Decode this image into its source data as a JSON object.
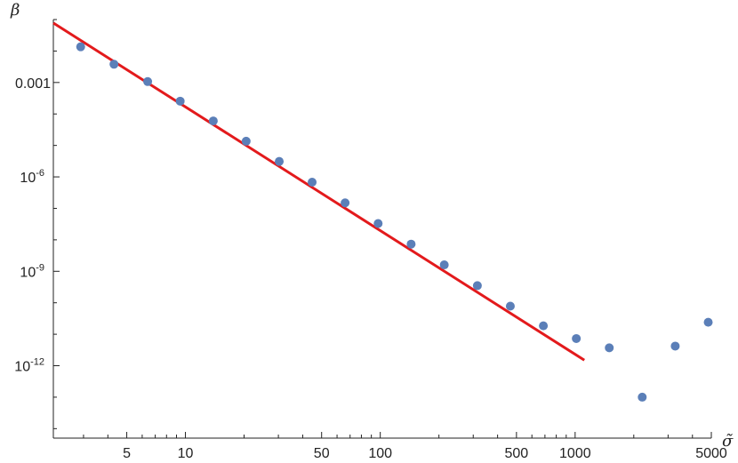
{
  "chart_data": {
    "type": "scatter",
    "xlabel": "σ̃",
    "ylabel": "β",
    "x_scale": "log",
    "y_scale": "log",
    "xlim": [
      2.1,
      5000
    ],
    "ylim": [
      5e-15,
      0.1
    ],
    "x_ticks": [
      {
        "value": 5,
        "label": "5"
      },
      {
        "value": 10,
        "label": "10"
      },
      {
        "value": 50,
        "label": "50"
      },
      {
        "value": 100,
        "label": "100"
      },
      {
        "value": 500,
        "label": "500"
      },
      {
        "value": 1000,
        "label": "1000"
      },
      {
        "value": 5000,
        "label": "5000"
      }
    ],
    "y_ticks": [
      {
        "value": 0.001,
        "label": "0.001",
        "base": "",
        "exp": ""
      },
      {
        "value": 1e-06,
        "label": "10-6",
        "base": "10",
        "exp": "-6"
      },
      {
        "value": 1e-09,
        "label": "10-9",
        "base": "10",
        "exp": "-9"
      },
      {
        "value": 1e-12,
        "label": "10-12",
        "base": "10",
        "exp": "-12"
      }
    ],
    "series": [
      {
        "kind": "points",
        "color": "#5b7fb8",
        "points": [
          [
            2.9,
            0.0136
          ],
          [
            4.3,
            0.0038
          ],
          [
            6.4,
            0.00107
          ],
          [
            9.4,
            0.000255
          ],
          [
            13.9,
            6e-05
          ],
          [
            20.5,
            1.36e-05
          ],
          [
            30.3,
            3.1e-06
          ],
          [
            44.7,
            6.8e-07
          ],
          [
            66,
            1.5e-07
          ],
          [
            97.5,
            3.3e-08
          ],
          [
            144,
            7.3e-09
          ],
          [
            213,
            1.6e-09
          ],
          [
            315,
            3.5e-10
          ],
          [
            465,
            7.8e-11
          ],
          [
            687,
            1.85e-11
          ],
          [
            1014,
            7.3e-12
          ],
          [
            1497,
            3.7e-12
          ],
          [
            2210,
            1e-13
          ],
          [
            3264,
            4.2e-12
          ],
          [
            4820,
            2.4e-11
          ]
        ]
      },
      {
        "kind": "line",
        "color": "#e31a1c",
        "points": [
          [
            2.1,
            0.0775
          ],
          [
            1115,
            1.5e-12
          ]
        ]
      }
    ]
  }
}
